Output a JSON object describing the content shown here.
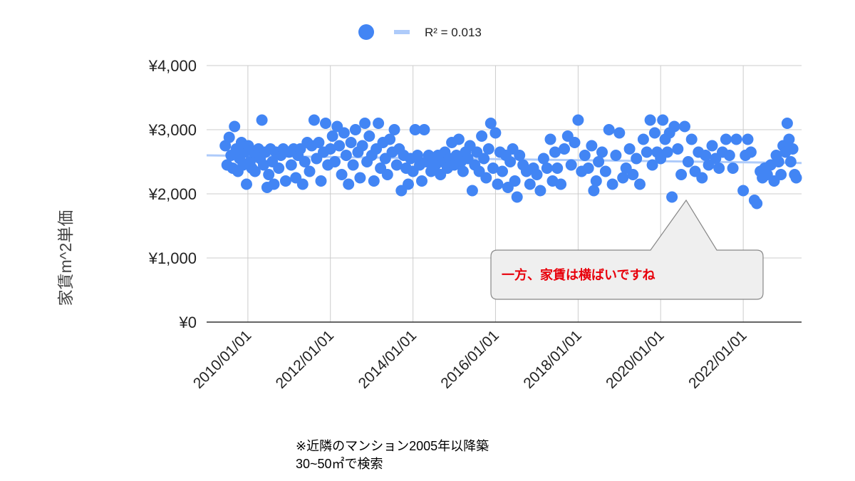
{
  "chart_data": {
    "type": "scatter",
    "ylabel": "家賃m^2単価",
    "xlabel": "",
    "ylim": [
      0,
      4000
    ],
    "xlim": [
      "2009/01/01",
      "2023/06/01"
    ],
    "x_ticks": [
      "2010/01/01",
      "2012/01/01",
      "2014/01/01",
      "2016/01/01",
      "2018/01/01",
      "2020/01/01",
      "2022/01/01"
    ],
    "y_ticks": [
      "¥0",
      "¥1,000",
      "¥2,000",
      "¥3,000",
      "¥4,000"
    ],
    "gridlines": true,
    "legend_position": "top",
    "legend": [
      {
        "marker": "dot",
        "label": ""
      },
      {
        "marker": "line",
        "label": "R² = 0.013"
      }
    ],
    "trendline": {
      "type": "linear",
      "r_squared": 0.013,
      "start": 2600,
      "end": 2480
    },
    "series": [
      {
        "color": "#4285f4",
        "points": [
          [
            "2009/06/15",
            2750
          ],
          [
            "2009/07/01",
            2450
          ],
          [
            "2009/07/20",
            2880
          ],
          [
            "2009/08/05",
            2600
          ],
          [
            "2009/08/20",
            2400
          ],
          [
            "2009/09/05",
            3050
          ],
          [
            "2009/09/20",
            2700
          ],
          [
            "2009/10/05",
            2350
          ],
          [
            "2009/10/20",
            2550
          ],
          [
            "2009/11/05",
            2800
          ],
          [
            "2009/11/20",
            2450
          ],
          [
            "2009/12/05",
            2650
          ],
          [
            "2009/12/20",
            2150
          ],
          [
            "2010/01/05",
            2750
          ],
          [
            "2010/01/20",
            2500
          ],
          [
            "2010/02/05",
            2400
          ],
          [
            "2010/02/20",
            2650
          ],
          [
            "2010/03/05",
            2350
          ],
          [
            "2010/03/20",
            2600
          ],
          [
            "2010/04/05",
            2700
          ],
          [
            "2010/04/20",
            2550
          ],
          [
            "2010/05/05",
            3150
          ],
          [
            "2010/05/20",
            2450
          ],
          [
            "2010/06/05",
            2650
          ],
          [
            "2010/06/20",
            2100
          ],
          [
            "2010/07/05",
            2300
          ],
          [
            "2010/07/20",
            2700
          ],
          [
            "2010/08/05",
            2500
          ],
          [
            "2010/08/20",
            2150
          ],
          [
            "2010/09/05",
            2650
          ],
          [
            "2010/10/01",
            2400
          ],
          [
            "2010/10/20",
            2600
          ],
          [
            "2010/11/10",
            2700
          ],
          [
            "2010/12/01",
            2200
          ],
          [
            "2011/01/01",
            2650
          ],
          [
            "2011/01/20",
            2450
          ],
          [
            "2011/02/10",
            2700
          ],
          [
            "2011/03/01",
            2250
          ],
          [
            "2011/03/20",
            2600
          ],
          [
            "2011/04/10",
            2700
          ],
          [
            "2011/05/01",
            2150
          ],
          [
            "2011/05/20",
            2500
          ],
          [
            "2011/06/10",
            2800
          ],
          [
            "2011/07/01",
            2350
          ],
          [
            "2011/07/20",
            2750
          ],
          [
            "2011/08/10",
            3150
          ],
          [
            "2011/09/01",
            2550
          ],
          [
            "2011/09/20",
            2800
          ],
          [
            "2011/10/10",
            2200
          ],
          [
            "2011/11/01",
            2650
          ],
          [
            "2011/11/20",
            3100
          ],
          [
            "2011/12/10",
            2450
          ],
          [
            "2012/01/01",
            2700
          ],
          [
            "2012/01/20",
            2900
          ],
          [
            "2012/02/10",
            2500
          ],
          [
            "2012/03/01",
            3050
          ],
          [
            "2012/03/20",
            2750
          ],
          [
            "2012/04/10",
            2300
          ],
          [
            "2012/05/01",
            2950
          ],
          [
            "2012/05/20",
            2600
          ],
          [
            "2012/06/10",
            2150
          ],
          [
            "2012/07/01",
            2800
          ],
          [
            "2012/07/20",
            2450
          ],
          [
            "2012/08/10",
            3000
          ],
          [
            "2012/09/01",
            2650
          ],
          [
            "2012/09/20",
            2250
          ],
          [
            "2012/10/10",
            2750
          ],
          [
            "2012/11/01",
            3100
          ],
          [
            "2012/11/20",
            2500
          ],
          [
            "2012/12/10",
            2900
          ],
          [
            "2013/01/01",
            2600
          ],
          [
            "2013/01/20",
            2200
          ],
          [
            "2013/02/10",
            2700
          ],
          [
            "2013/03/01",
            3100
          ],
          [
            "2013/03/20",
            2400
          ],
          [
            "2013/04/10",
            2800
          ],
          [
            "2013/05/01",
            2550
          ],
          [
            "2013/05/20",
            2300
          ],
          [
            "2013/06/10",
            2850
          ],
          [
            "2013/07/01",
            2650
          ],
          [
            "2013/07/20",
            3000
          ],
          [
            "2013/08/10",
            2450
          ],
          [
            "2013/09/01",
            2700
          ],
          [
            "2013/09/20",
            2050
          ],
          [
            "2013/10/10",
            2600
          ],
          [
            "2013/11/01",
            2400
          ],
          [
            "2013/11/20",
            2150
          ],
          [
            "2013/12/10",
            2550
          ],
          [
            "2014/01/01",
            2350
          ],
          [
            "2014/01/20",
            3000
          ],
          [
            "2014/02/10",
            2600
          ],
          [
            "2014/03/01",
            2450
          ],
          [
            "2014/03/20",
            2200
          ],
          [
            "2014/04/10",
            3000
          ],
          [
            "2014/05/01",
            2500
          ],
          [
            "2014/05/20",
            2600
          ],
          [
            "2014/06/10",
            2350
          ],
          [
            "2014/07/01",
            2550
          ],
          [
            "2014/07/20",
            2450
          ],
          [
            "2014/08/10",
            2600
          ],
          [
            "2014/09/01",
            2300
          ],
          [
            "2014/09/20",
            2500
          ],
          [
            "2014/10/10",
            2650
          ],
          [
            "2014/11/01",
            2400
          ],
          [
            "2014/11/20",
            2550
          ],
          [
            "2014/12/10",
            2800
          ],
          [
            "2015/01/01",
            2450
          ],
          [
            "2015/01/20",
            2600
          ],
          [
            "2015/02/10",
            2850
          ],
          [
            "2015/03/01",
            2500
          ],
          [
            "2015/03/20",
            2350
          ],
          [
            "2015/04/10",
            2650
          ],
          [
            "2015/05/01",
            2550
          ],
          [
            "2015/05/20",
            2750
          ],
          [
            "2015/06/10",
            2050
          ],
          [
            "2015/07/01",
            2450
          ],
          [
            "2015/07/20",
            2650
          ],
          [
            "2015/08/10",
            2350
          ],
          [
            "2015/09/01",
            2900
          ],
          [
            "2015/09/20",
            2550
          ],
          [
            "2015/10/10",
            2250
          ],
          [
            "2015/11/01",
            2700
          ],
          [
            "2015/11/20",
            3100
          ],
          [
            "2015/12/10",
            2400
          ],
          [
            "2016/01/01",
            2950
          ],
          [
            "2016/01/20",
            2150
          ],
          [
            "2016/02/10",
            2650
          ],
          [
            "2016/03/01",
            2350
          ],
          [
            "2016/04/01",
            2600
          ],
          [
            "2016/04/20",
            2100
          ],
          [
            "2016/05/10",
            2500
          ],
          [
            "2016/06/01",
            2700
          ],
          [
            "2016/06/20",
            2200
          ],
          [
            "2016/07/10",
            1950
          ],
          [
            "2016/08/01",
            2600
          ],
          [
            "2016/09/01",
            2450
          ],
          [
            "2016/10/01",
            2350
          ],
          [
            "2016/11/01",
            2150
          ],
          [
            "2016/12/01",
            2400
          ],
          [
            "2017/01/01",
            2300
          ],
          [
            "2017/02/01",
            2050
          ],
          [
            "2017/03/01",
            2550
          ],
          [
            "2017/04/01",
            2400
          ],
          [
            "2017/05/01",
            2850
          ],
          [
            "2017/05/20",
            2200
          ],
          [
            "2017/06/10",
            2650
          ],
          [
            "2017/07/01",
            2400
          ],
          [
            "2017/08/01",
            2150
          ],
          [
            "2017/09/01",
            2700
          ],
          [
            "2017/10/01",
            2900
          ],
          [
            "2017/11/01",
            2450
          ],
          [
            "2017/12/01",
            2800
          ],
          [
            "2018/01/01",
            3150
          ],
          [
            "2018/02/01",
            2350
          ],
          [
            "2018/03/01",
            2600
          ],
          [
            "2018/04/01",
            2400
          ],
          [
            "2018/05/01",
            2750
          ],
          [
            "2018/05/20",
            2050
          ],
          [
            "2018/06/10",
            2200
          ],
          [
            "2018/07/01",
            2500
          ],
          [
            "2018/08/01",
            2650
          ],
          [
            "2018/09/01",
            2350
          ],
          [
            "2018/10/01",
            3000
          ],
          [
            "2018/11/01",
            2150
          ],
          [
            "2018/12/01",
            2600
          ],
          [
            "2019/01/01",
            2950
          ],
          [
            "2019/02/01",
            2250
          ],
          [
            "2019/03/01",
            2400
          ],
          [
            "2019/04/01",
            2700
          ],
          [
            "2019/05/01",
            2300
          ],
          [
            "2019/06/01",
            2550
          ],
          [
            "2019/07/01",
            2150
          ],
          [
            "2019/08/01",
            2850
          ],
          [
            "2019/09/01",
            2650
          ],
          [
            "2019/10/01",
            3150
          ],
          [
            "2019/10/20",
            2450
          ],
          [
            "2019/11/10",
            2950
          ],
          [
            "2019/12/01",
            2650
          ],
          [
            "2020/01/01",
            2550
          ],
          [
            "2020/01/20",
            3150
          ],
          [
            "2020/02/10",
            2850
          ],
          [
            "2020/03/01",
            2650
          ],
          [
            "2020/03/20",
            2950
          ],
          [
            "2020/04/10",
            1950
          ],
          [
            "2020/05/01",
            3050
          ],
          [
            "2020/06/01",
            2700
          ],
          [
            "2020/07/01",
            2300
          ],
          [
            "2020/08/01",
            3050
          ],
          [
            "2020/09/01",
            2500
          ],
          [
            "2020/10/01",
            2850
          ],
          [
            "2020/11/01",
            2350
          ],
          [
            "2020/12/01",
            2650
          ],
          [
            "2021/01/01",
            2250
          ],
          [
            "2021/02/01",
            2600
          ],
          [
            "2021/03/01",
            2450
          ],
          [
            "2021/04/01",
            2750
          ],
          [
            "2021/05/01",
            2550
          ],
          [
            "2021/06/01",
            2400
          ],
          [
            "2021/07/01",
            2650
          ],
          [
            "2021/08/01",
            2850
          ],
          [
            "2021/09/01",
            2600
          ],
          [
            "2021/10/01",
            2400
          ],
          [
            "2021/11/01",
            2850
          ],
          [
            "2022/01/01",
            2050
          ],
          [
            "2022/01/20",
            2600
          ],
          [
            "2022/02/10",
            2850
          ],
          [
            "2022/03/10",
            2650
          ],
          [
            "2022/04/10",
            1900
          ],
          [
            "2022/05/01",
            1850
          ],
          [
            "2022/06/01",
            2350
          ],
          [
            "2022/06/20",
            2250
          ],
          [
            "2022/07/10",
            2400
          ],
          [
            "2022/08/01",
            2300
          ],
          [
            "2022/09/01",
            2450
          ],
          [
            "2022/10/01",
            2200
          ],
          [
            "2022/10/20",
            2600
          ],
          [
            "2022/11/10",
            2500
          ],
          [
            "2022/12/01",
            2300
          ],
          [
            "2022/12/20",
            2750
          ],
          [
            "2023/01/10",
            2650
          ],
          [
            "2023/01/25",
            3100
          ],
          [
            "2023/02/10",
            2850
          ],
          [
            "2023/02/25",
            2500
          ],
          [
            "2023/03/15",
            2700
          ],
          [
            "2023/04/01",
            2300
          ],
          [
            "2023/04/15",
            2250
          ]
        ]
      }
    ]
  },
  "annotation": {
    "text": "一方、家賃は横ばいですね"
  },
  "footnote": {
    "line1": "※近隣のマンション2005年以降築",
    "line2": "30~50㎡で検索"
  },
  "colors": {
    "point": "#4285f4",
    "trendline": "#aecbfa",
    "grid": "#cccccc",
    "axis": "#333333",
    "callout_fill": "#efefef",
    "callout_stroke": "#888888",
    "annotation_text": "#e8000b"
  }
}
